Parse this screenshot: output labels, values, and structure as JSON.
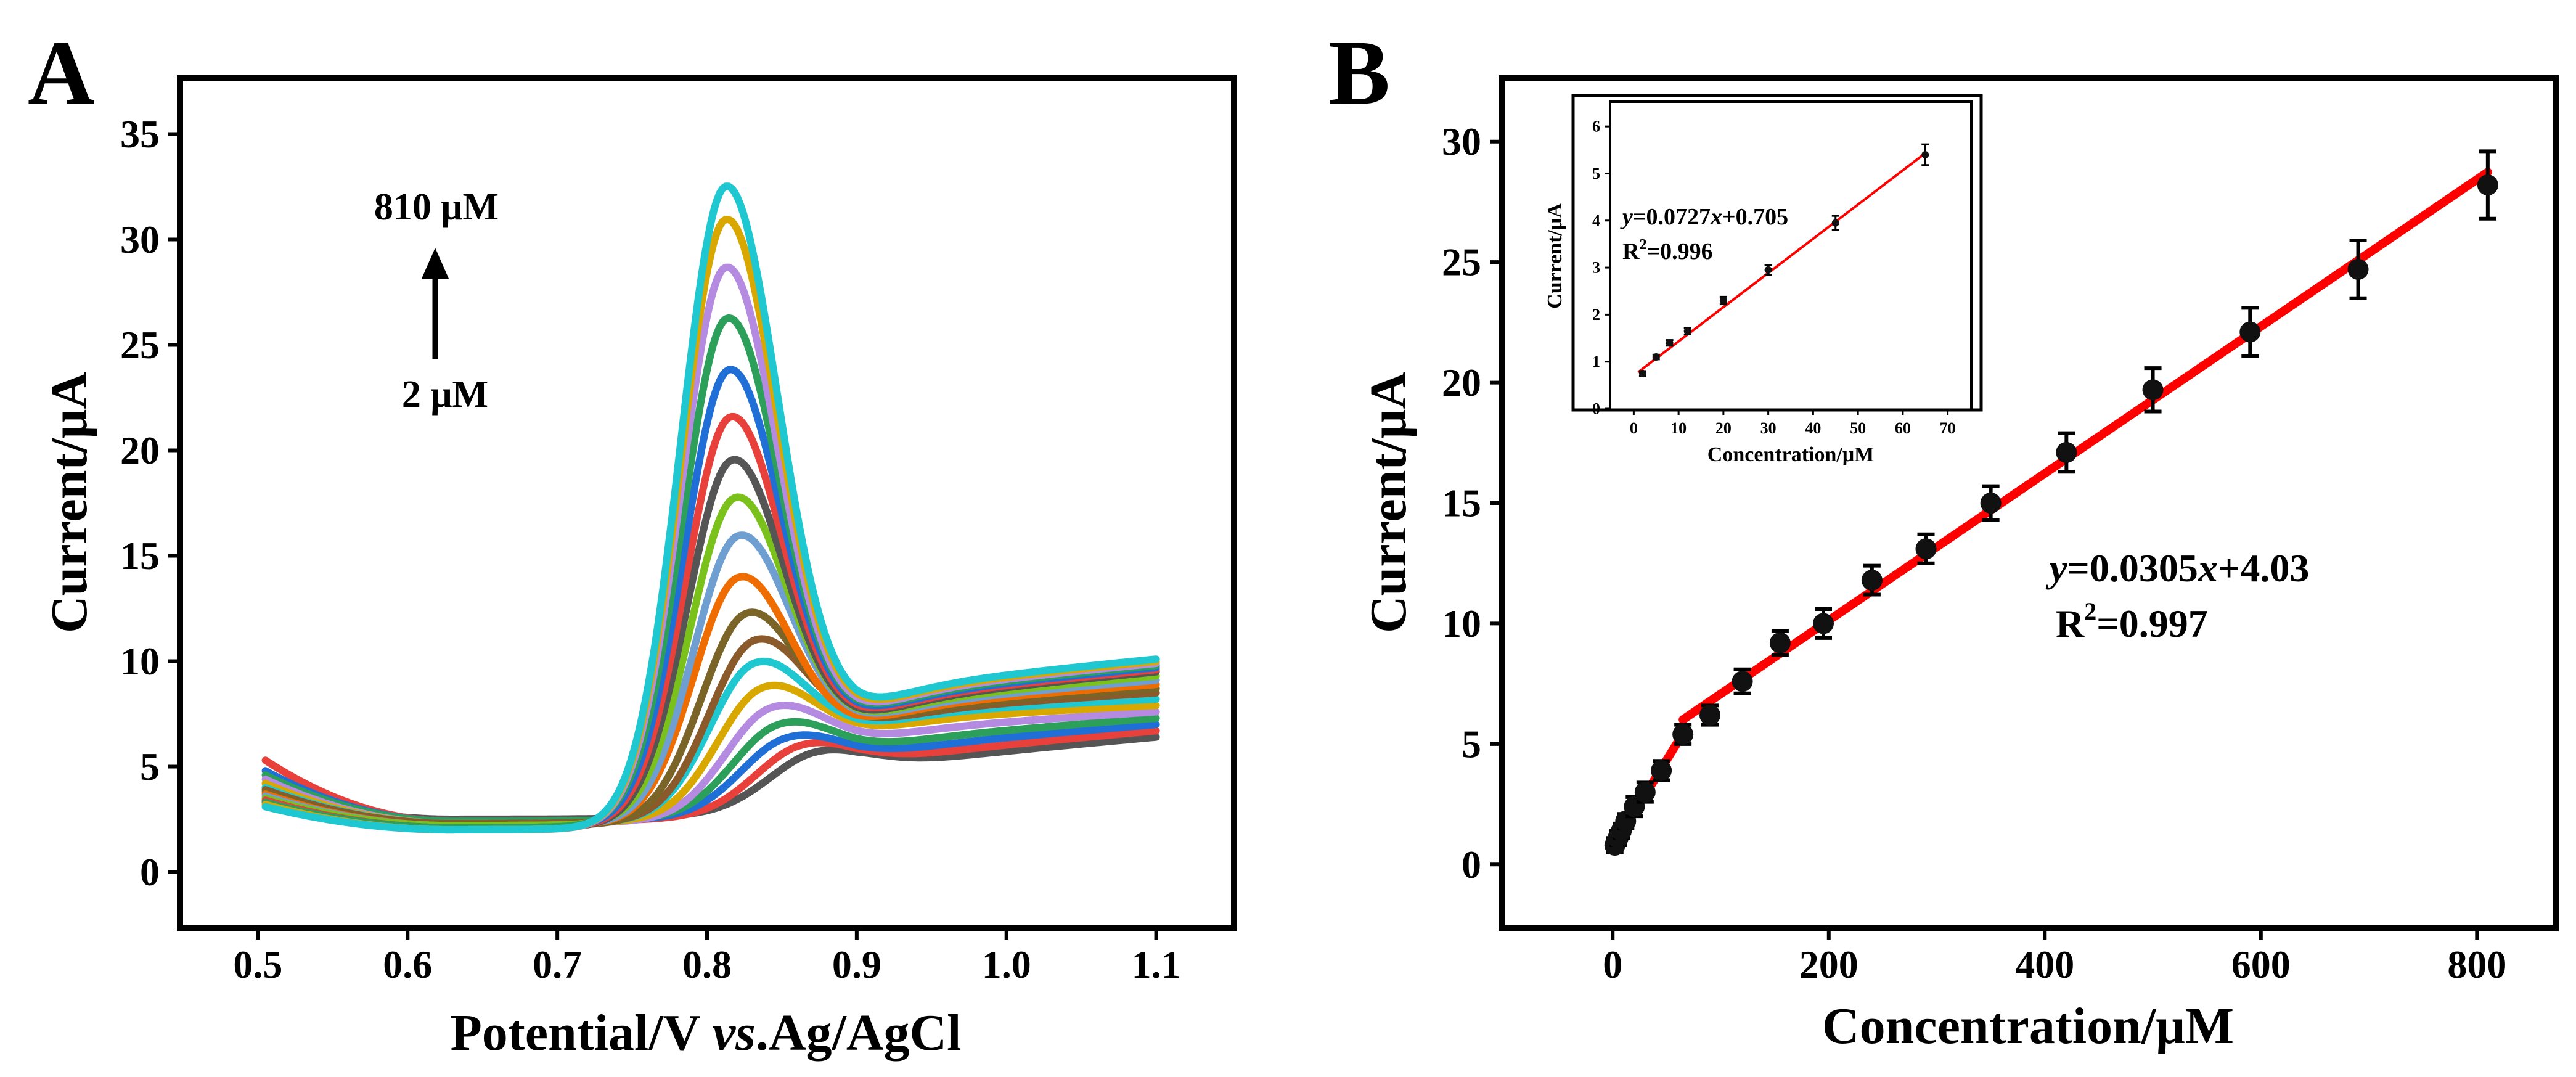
{
  "chart_data": [
    {
      "panel": "A",
      "type": "line",
      "xlabel_parts": [
        "Potential/V ",
        "vs",
        ".Ag/AgCl"
      ],
      "ylabel": "Current/μA",
      "xlim": [
        0.45,
        1.15
      ],
      "ylim": [
        -2.5,
        37.5
      ],
      "xticks": [
        0.5,
        0.6,
        0.7,
        0.8,
        0.9,
        1.0,
        1.1
      ],
      "xtick_labels": [
        "0.5",
        "0.6",
        "0.7",
        "0.8",
        "0.9",
        "1.0",
        "1.1"
      ],
      "yticks": [
        0,
        5,
        10,
        15,
        20,
        25,
        30,
        35
      ],
      "ytick_labels": [
        "0",
        "5",
        "10",
        "15",
        "20",
        "25",
        "30",
        "35"
      ],
      "annotation_top": "810 μM",
      "annotation_bottom": "2 μM",
      "series": [
        {
          "color": "#555555",
          "peak_x": 0.87,
          "peak_y": 5.3,
          "start_y": 4.0,
          "end_y": 6.4,
          "plateau_y": 5.1,
          "base_min": 2.5
        },
        {
          "color": "#e8403a",
          "peak_x": 0.86,
          "peak_y": 5.8,
          "start_y": 5.3,
          "end_y": 6.7,
          "plateau_y": 5.4,
          "base_min": 2.4
        },
        {
          "color": "#1f6fd6",
          "peak_x": 0.85,
          "peak_y": 6.4,
          "start_y": 4.8,
          "end_y": 7.0,
          "plateau_y": 5.8,
          "base_min": 2.4
        },
        {
          "color": "#2ca05a",
          "peak_x": 0.845,
          "peak_y": 7.2,
          "start_y": 4.6,
          "end_y": 7.3,
          "plateau_y": 6.2,
          "base_min": 2.4
        },
        {
          "color": "#b48be0",
          "peak_x": 0.84,
          "peak_y": 8.2,
          "start_y": 4.4,
          "end_y": 7.6,
          "plateau_y": 6.7,
          "base_min": 2.3
        },
        {
          "color": "#d9a800",
          "peak_x": 0.835,
          "peak_y": 9.4,
          "start_y": 4.2,
          "end_y": 7.9,
          "plateau_y": 7.2,
          "base_min": 2.3
        },
        {
          "color": "#1fc8d0",
          "peak_x": 0.83,
          "peak_y": 10.8,
          "start_y": 4.0,
          "end_y": 8.2,
          "plateau_y": 7.5,
          "base_min": 2.3
        },
        {
          "color": "#8a5a2a",
          "peak_x": 0.83,
          "peak_y": 11.9,
          "start_y": 3.9,
          "end_y": 8.5,
          "plateau_y": 7.6,
          "base_min": 2.3
        },
        {
          "color": "#7a6428",
          "peak_x": 0.825,
          "peak_y": 13.4,
          "start_y": 3.8,
          "end_y": 8.7,
          "plateau_y": 7.7,
          "base_min": 2.2
        },
        {
          "color": "#ef6c00",
          "peak_x": 0.82,
          "peak_y": 15.3,
          "start_y": 3.7,
          "end_y": 8.9,
          "plateau_y": 7.8,
          "base_min": 2.2
        },
        {
          "color": "#6e9fd0",
          "peak_x": 0.82,
          "peak_y": 17.3,
          "start_y": 3.6,
          "end_y": 9.1,
          "plateau_y": 7.9,
          "base_min": 2.2
        },
        {
          "color": "#7ac11c",
          "peak_x": 0.818,
          "peak_y": 19.2,
          "start_y": 3.5,
          "end_y": 9.3,
          "plateau_y": 8.0,
          "base_min": 2.2
        },
        {
          "color": "#555555",
          "peak_x": 0.816,
          "peak_y": 21.1,
          "start_y": 3.4,
          "end_y": 9.5,
          "plateau_y": 8.1,
          "base_min": 2.1
        },
        {
          "color": "#e8403a",
          "peak_x": 0.815,
          "peak_y": 23.2,
          "start_y": 3.4,
          "end_y": 9.6,
          "plateau_y": 8.2,
          "base_min": 2.1
        },
        {
          "color": "#1f6fd6",
          "peak_x": 0.814,
          "peak_y": 25.5,
          "start_y": 3.3,
          "end_y": 9.7,
          "plateau_y": 8.3,
          "base_min": 2.1
        },
        {
          "color": "#2ca05a",
          "peak_x": 0.813,
          "peak_y": 28.0,
          "start_y": 3.3,
          "end_y": 9.8,
          "plateau_y": 8.4,
          "base_min": 2.1
        },
        {
          "color": "#b48be0",
          "peak_x": 0.812,
          "peak_y": 30.5,
          "start_y": 3.2,
          "end_y": 9.9,
          "plateau_y": 8.5,
          "base_min": 2.0
        },
        {
          "color": "#d9a800",
          "peak_x": 0.812,
          "peak_y": 32.8,
          "start_y": 3.2,
          "end_y": 10.0,
          "plateau_y": 8.6,
          "base_min": 2.0
        },
        {
          "color": "#1fc8d0",
          "peak_x": 0.812,
          "peak_y": 34.4,
          "start_y": 3.1,
          "end_y": 10.1,
          "plateau_y": 8.7,
          "base_min": 2.0
        }
      ]
    },
    {
      "panel": "B",
      "type": "scatter",
      "xlabel": "Concentration/μM",
      "ylabel": "Current/μA",
      "xlim": [
        -100,
        870
      ],
      "ylim": [
        -2.5,
        32.5
      ],
      "xticks": [
        0,
        200,
        400,
        600,
        800
      ],
      "xtick_labels": [
        "0",
        "200",
        "400",
        "600",
        "800"
      ],
      "yticks": [
        0,
        5,
        10,
        15,
        20,
        25,
        30
      ],
      "ytick_labels": [
        "0",
        "5",
        "10",
        "15",
        "20",
        "25",
        "30"
      ],
      "points": {
        "x": [
          2,
          5,
          8,
          12,
          20,
          30,
          45,
          65,
          90,
          120,
          155,
          195,
          240,
          290,
          350,
          420,
          500,
          590,
          690,
          810
        ],
        "y": [
          0.8,
          1.1,
          1.4,
          1.8,
          2.4,
          3.0,
          3.9,
          5.4,
          6.2,
          7.6,
          9.2,
          10.0,
          11.8,
          13.1,
          15.0,
          17.1,
          19.7,
          22.1,
          24.7,
          28.2
        ],
        "err": [
          0.3,
          0.3,
          0.3,
          0.3,
          0.4,
          0.4,
          0.4,
          0.4,
          0.4,
          0.5,
          0.5,
          0.6,
          0.6,
          0.6,
          0.7,
          0.8,
          0.9,
          1.0,
          1.2,
          1.4
        ]
      },
      "fit_low": {
        "x": [
          2,
          65
        ]
      },
      "fit_high": {
        "x": [
          65,
          810
        ]
      },
      "fit_color": "#ff0000",
      "equation": {
        "y_var": "y",
        "mid": "=0.0305",
        "x_var": "x",
        "tail": "+4.03"
      },
      "r2": {
        "base": "R",
        "sup": "2",
        "tail": "=0.997"
      },
      "inset": {
        "xlabel": "Concentration/μM",
        "ylabel": "Current/μA",
        "xlim": [
          -5,
          75
        ],
        "ylim": [
          0,
          6.5
        ],
        "xticks": [
          0,
          10,
          20,
          30,
          40,
          50,
          60,
          70
        ],
        "xtick_labels": [
          "0",
          "10",
          "20",
          "30",
          "40",
          "50",
          "60",
          "70"
        ],
        "yticks": [
          0,
          1,
          2,
          3,
          4,
          5,
          6
        ],
        "ytick_labels": [
          "0",
          "1",
          "2",
          "3",
          "4",
          "5",
          "6"
        ],
        "points": {
          "x": [
            2,
            5,
            8,
            12,
            20,
            30,
            45,
            65
          ],
          "y": [
            0.75,
            1.1,
            1.4,
            1.65,
            2.3,
            2.95,
            3.95,
            5.4
          ],
          "err": [
            0.05,
            0.05,
            0.06,
            0.07,
            0.08,
            0.1,
            0.15,
            0.22
          ]
        },
        "fit": {
          "slope": 0.0727,
          "intercept": 0.705,
          "x": [
            1,
            65
          ]
        },
        "equation": {
          "y_var": "y",
          "mid": "=0.0727",
          "x_var": "x",
          "tail": "+0.705"
        },
        "r2": {
          "base": "R",
          "sup": "2",
          "tail": "=0.996"
        }
      }
    }
  ],
  "panels": {
    "a_label": "A",
    "b_label": "B"
  }
}
